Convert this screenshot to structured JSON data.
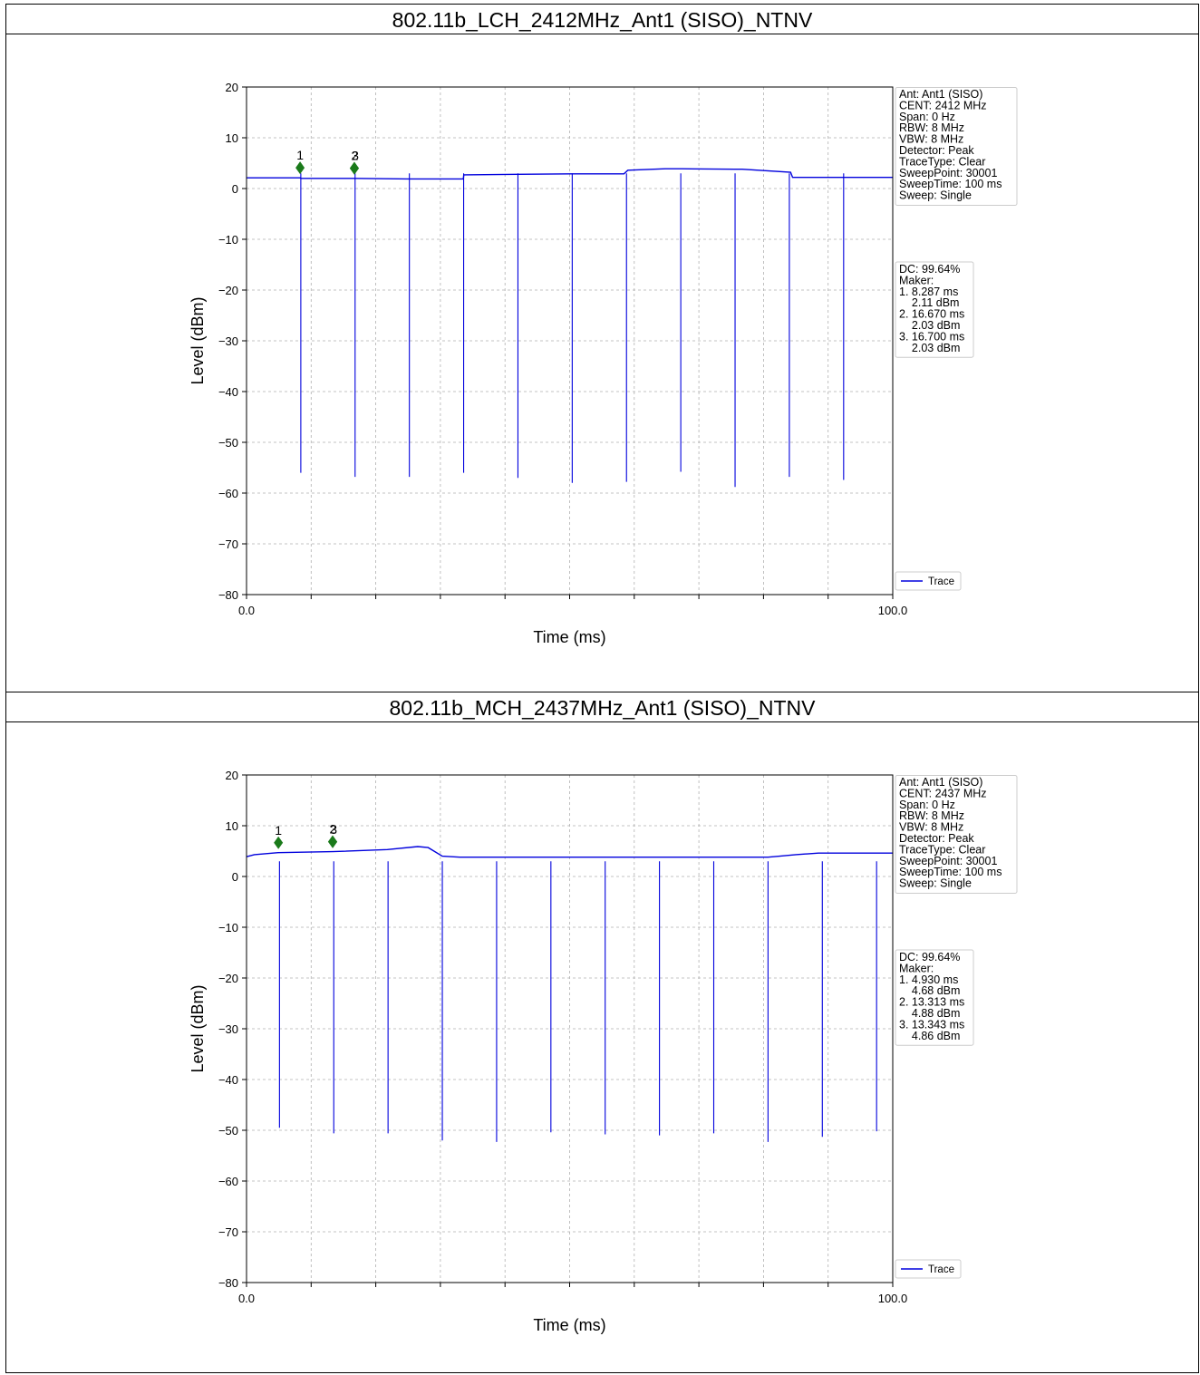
{
  "panels": [
    {
      "title": "802.11b_LCH_2412MHz_Ant1 (SISO)_NTNV"
    },
    {
      "title": "802.11b_MCH_2437MHz_Ant1 (SISO)_NTNV"
    }
  ],
  "chart_data": [
    {
      "type": "line",
      "title": "802.11b_LCH_2412MHz_Ant1 (SISO)_NTNV",
      "xlabel": "Time (ms)",
      "ylabel": "Level (dBm)",
      "xlim": [
        0,
        100
      ],
      "ylim": [
        -80,
        20
      ],
      "x_tick_labels": [
        "0.0",
        "100.0"
      ],
      "y_ticks": [
        20,
        10,
        0,
        -10,
        -20,
        -30,
        -40,
        -50,
        -60,
        -70,
        -80
      ],
      "y_tick_labels": [
        "20",
        "10",
        "0",
        "−10",
        "−20",
        "−30",
        "−40",
        "−50",
        "−60",
        "−70",
        "−80"
      ],
      "grid": true,
      "legend": "lower-right",
      "line_color": "#0000dd",
      "marker_color": "#1a7a1a",
      "series": [
        {
          "name": "Trace",
          "x": [
            0,
            8.28,
            8.4,
            16.67,
            16.7,
            25.02,
            33.55,
            33.62,
            41.9,
            50.2,
            58.4,
            59,
            64.8,
            67.5,
            75.5,
            76.7,
            84.2,
            84.5,
            92.6,
            100
          ],
          "y": [
            2.1,
            2.1,
            2.0,
            2.0,
            2.0,
            1.9,
            1.9,
            2.7,
            2.8,
            2.9,
            2.9,
            3.6,
            3.9,
            3.9,
            3.8,
            3.8,
            3.2,
            2.2,
            2.2,
            2.2
          ]
        }
      ],
      "dips": [
        {
          "x": 8.4,
          "y": -56
        },
        {
          "x": 16.8,
          "y": -56.8
        },
        {
          "x": 25.2,
          "y": -56.8
        },
        {
          "x": 33.6,
          "y": -56
        },
        {
          "x": 42.0,
          "y": -57
        },
        {
          "x": 50.4,
          "y": -58
        },
        {
          "x": 58.8,
          "y": -57.8
        },
        {
          "x": 67.2,
          "y": -55.8
        },
        {
          "x": 75.6,
          "y": -58.8
        },
        {
          "x": 84.0,
          "y": -56.8
        },
        {
          "x": 92.4,
          "y": -57.4
        }
      ],
      "markers": [
        {
          "label": "1",
          "x": 8.287,
          "y": 2.11
        },
        {
          "label": "2",
          "x": 16.67,
          "y": 2.03
        },
        {
          "label": "3",
          "x": 16.7,
          "y": 2.03
        }
      ],
      "info_box": [
        "Ant: Ant1 (SISO)",
        "CENT: 2412 MHz",
        "Span: 0 Hz",
        "RBW: 8 MHz",
        "VBW: 8 MHz",
        "Detector: Peak",
        "TraceType: Clear",
        "SweepPoint: 30001",
        "SweepTime: 100 ms",
        "Sweep: Single"
      ],
      "marker_box": [
        "DC: 99.64%",
        "Maker:",
        "1. 8.287 ms",
        "    2.11 dBm",
        "2. 16.670 ms",
        "    2.03 dBm",
        "3. 16.700 ms",
        "    2.03 dBm"
      ]
    },
    {
      "type": "line",
      "title": "802.11b_MCH_2437MHz_Ant1 (SISO)_NTNV",
      "xlabel": "Time (ms)",
      "ylabel": "Level (dBm)",
      "xlim": [
        0,
        100
      ],
      "ylim": [
        -80,
        20
      ],
      "x_tick_labels": [
        "0.0",
        "100.0"
      ],
      "y_ticks": [
        20,
        10,
        0,
        -10,
        -20,
        -30,
        -40,
        -50,
        -60,
        -70,
        -80
      ],
      "y_tick_labels": [
        "20",
        "10",
        "0",
        "−10",
        "−20",
        "−30",
        "−40",
        "−50",
        "−60",
        "−70",
        "−80"
      ],
      "grid": true,
      "legend": "lower-right",
      "line_color": "#0000dd",
      "marker_color": "#1a7a1a",
      "series": [
        {
          "name": "Trace",
          "x": [
            0,
            1.2,
            4.9,
            13.3,
            21.8,
            26.5,
            28.1,
            30.3,
            33.0,
            50,
            70,
            80.7,
            82.5,
            85.0,
            88.5,
            100
          ],
          "y": [
            3.9,
            4.3,
            4.7,
            4.9,
            5.3,
            5.9,
            5.7,
            4.0,
            3.8,
            3.8,
            3.8,
            3.8,
            4.0,
            4.3,
            4.6,
            4.6
          ]
        }
      ],
      "dips": [
        {
          "x": 5.1,
          "y": -49.5
        },
        {
          "x": 13.5,
          "y": -50.6
        },
        {
          "x": 21.9,
          "y": -50.6
        },
        {
          "x": 30.3,
          "y": -52
        },
        {
          "x": 38.7,
          "y": -52.3
        },
        {
          "x": 47.1,
          "y": -50.4
        },
        {
          "x": 55.5,
          "y": -50.8
        },
        {
          "x": 63.9,
          "y": -51
        },
        {
          "x": 72.3,
          "y": -50.6
        },
        {
          "x": 80.7,
          "y": -52.3
        },
        {
          "x": 89.1,
          "y": -51.3
        },
        {
          "x": 97.5,
          "y": -50.2
        }
      ],
      "markers": [
        {
          "label": "1",
          "x": 4.93,
          "y": 4.68
        },
        {
          "label": "2",
          "x": 13.313,
          "y": 4.88
        },
        {
          "label": "3",
          "x": 13.343,
          "y": 4.86
        }
      ],
      "info_box": [
        "Ant: Ant1 (SISO)",
        "CENT: 2437 MHz",
        "Span: 0 Hz",
        "RBW: 8 MHz",
        "VBW: 8 MHz",
        "Detector: Peak",
        "TraceType: Clear",
        "SweepPoint: 30001",
        "SweepTime: 100 ms",
        "Sweep: Single"
      ],
      "marker_box": [
        "DC: 99.64%",
        "Maker:",
        "1. 4.930 ms",
        "    4.68 dBm",
        "2. 13.313 ms",
        "    4.88 dBm",
        "3. 13.343 ms",
        "    4.86 dBm"
      ]
    }
  ]
}
